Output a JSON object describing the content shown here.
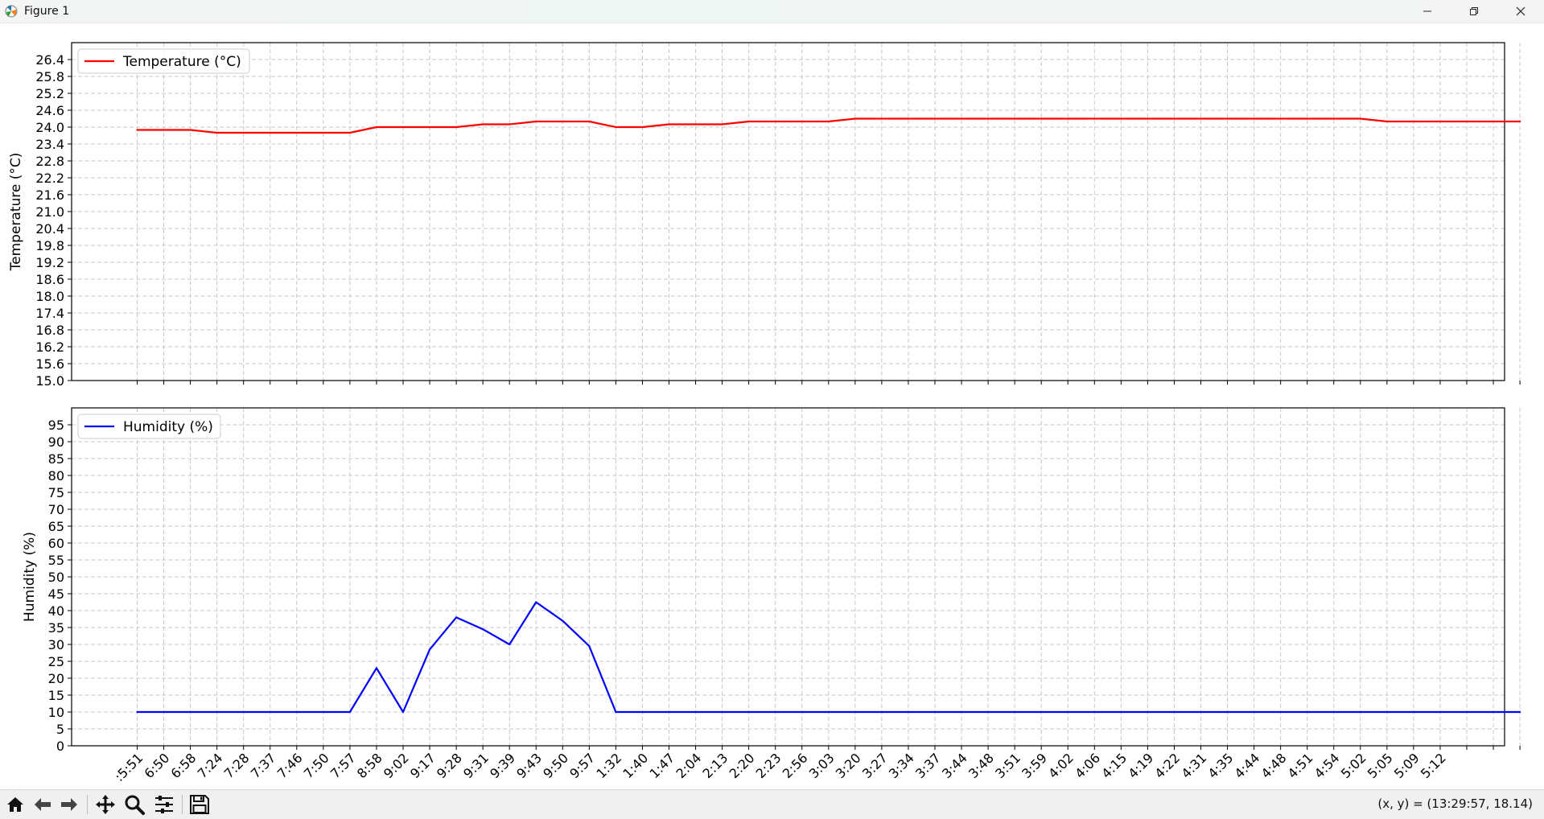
{
  "window": {
    "title": "Figure 1",
    "icons": [
      "matplotlib-app-icon",
      "minimize-icon",
      "restore-icon",
      "close-icon"
    ]
  },
  "toolbar": {
    "buttons": [
      "home-icon",
      "back-arrow-icon",
      "forward-arrow-icon",
      "pan-move-icon",
      "zoom-magnifier-icon",
      "configure-subplots-icon",
      "save-floppy-icon"
    ],
    "coordinates": "(x, y) = (13:29:57, 18.14)"
  },
  "chart_data": [
    {
      "type": "line",
      "title": "",
      "xlabel": "",
      "ylabel": "Temperature (°C)",
      "ylim": [
        15.0,
        27.0
      ],
      "yticks": [
        "15.0",
        "15.6",
        "16.2",
        "16.8",
        "17.4",
        "18.0",
        "18.6",
        "19.2",
        "19.8",
        "20.4",
        "21.0",
        "21.6",
        "22.2",
        "22.8",
        "23.4",
        "24.0",
        "24.6",
        "25.2",
        "25.8",
        "26.4"
      ],
      "grid": true,
      "legend_position": "top-left",
      "series": [
        {
          "name": "Temperature (°C)",
          "color": "#ff0000",
          "values": [
            23.9,
            23.9,
            23.9,
            23.8,
            23.8,
            23.8,
            23.8,
            23.8,
            23.8,
            24.0,
            24.0,
            24.0,
            24.0,
            24.1,
            24.1,
            24.2,
            24.2,
            24.2,
            24.0,
            24.0,
            24.1,
            24.1,
            24.1,
            24.2,
            24.2,
            24.2,
            24.2,
            24.3,
            24.3,
            24.3,
            24.3,
            24.3,
            24.3,
            24.3,
            24.3,
            24.3,
            24.3,
            24.3,
            24.3,
            24.3,
            24.3,
            24.3,
            24.3,
            24.3,
            24.3,
            24.3,
            24.3,
            24.2,
            24.2,
            24.2,
            24.2,
            24.2,
            24.2
          ]
        }
      ]
    },
    {
      "type": "line",
      "title": "",
      "xlabel": "",
      "ylabel": "Humidity (%)",
      "ylim": [
        0,
        100
      ],
      "yticks": [
        "0",
        "5",
        "10",
        "15",
        "20",
        "25",
        "30",
        "35",
        "40",
        "45",
        "50",
        "55",
        "60",
        "65",
        "70",
        "75",
        "80",
        "85",
        "90",
        "95"
      ],
      "grid": true,
      "legend_position": "top-left",
      "series": [
        {
          "name": "Humidity (%)",
          "color": "#0000ff",
          "values": [
            10,
            10,
            10,
            10,
            10,
            10,
            10,
            10,
            10,
            23,
            10,
            28.5,
            38,
            34.5,
            30,
            42.5,
            37,
            29.5,
            10,
            10,
            10,
            10,
            10,
            10,
            10,
            10,
            10,
            10,
            10,
            10,
            10,
            10,
            10,
            10,
            10,
            10,
            10,
            10,
            10,
            10,
            10,
            10,
            10,
            10,
            10,
            10,
            10,
            10,
            10,
            10,
            10,
            10,
            10
          ]
        }
      ]
    }
  ],
  "shared_x": {
    "tick_labels": [
      ":5:51",
      "6:50",
      "6:58",
      "7:24",
      "7:28",
      "7:37",
      "7:46",
      "7:50",
      "7:57",
      "8:58",
      "9:02",
      "9:17",
      "9:28",
      "9:31",
      "9:39",
      "9:43",
      "9:50",
      "9:57",
      "1:32",
      "1:40",
      "1:47",
      "2:04",
      "2:13",
      "2:20",
      "2:23",
      "2:56",
      "3:03",
      "3:20",
      "3:27",
      "3:34",
      "3:37",
      "3:44",
      "3:48",
      "3:51",
      "3:59",
      "4:02",
      "4:06",
      "4:15",
      "4:19",
      "4:22",
      "4:31",
      "4:35",
      "4:44",
      "4:48",
      "4:51",
      "4:54",
      "5:02",
      "5:05",
      "5:09",
      "5:12"
    ],
    "tick_rotation_deg": 45
  }
}
